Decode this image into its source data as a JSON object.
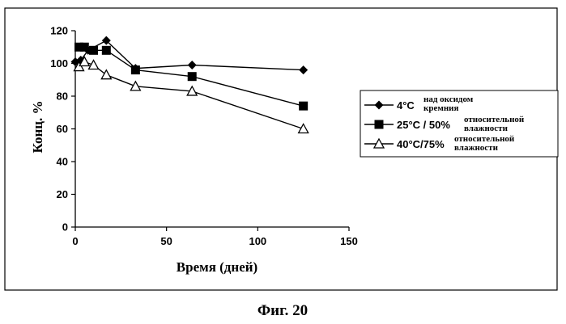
{
  "chart_data": {
    "type": "line",
    "title": "",
    "xlabel": "Время (дней)",
    "ylabel": "Конц. %",
    "xlim": [
      0,
      150
    ],
    "ylim": [
      0,
      120
    ],
    "xticks": [
      "0",
      "50",
      "100",
      "150"
    ],
    "yticks": [
      "0",
      "20",
      "40",
      "60",
      "80",
      "100",
      "120"
    ],
    "grid": false,
    "legend_position": "right",
    "series": [
      {
        "name_main": "4°C",
        "name_line1": "над оксидом",
        "name_line2": "кремния",
        "marker": "diamond",
        "x": [
          0,
          3,
          7,
          17,
          33,
          64,
          125
        ],
        "y": [
          101,
          102,
          108,
          114,
          97,
          99,
          96
        ]
      },
      {
        "name_main": "25°C / 50%",
        "name_line1": "относительной",
        "name_line2": "влажности",
        "marker": "square",
        "x": [
          2,
          5,
          10,
          17,
          33,
          64,
          125
        ],
        "y": [
          110,
          110,
          108,
          108,
          96,
          92,
          74
        ]
      },
      {
        "name_main": "40°C/75%",
        "name_line1": "относительной",
        "name_line2": "влажности",
        "marker": "triangle-open",
        "x": [
          2,
          5,
          10,
          17,
          33,
          64,
          125
        ],
        "y": [
          98,
          101,
          99,
          93,
          86,
          83,
          60
        ]
      }
    ]
  },
  "caption": "Фиг. 20"
}
